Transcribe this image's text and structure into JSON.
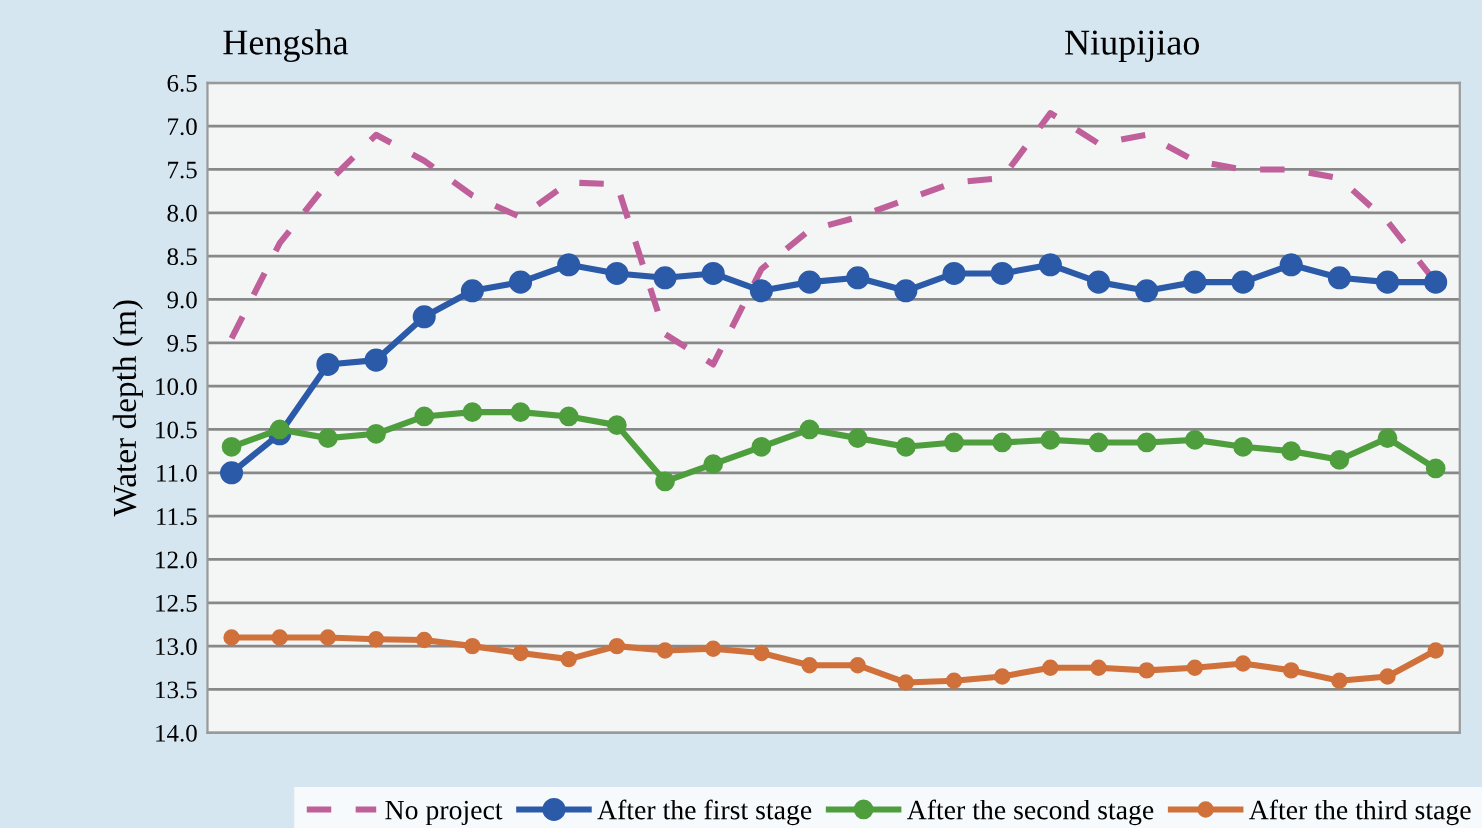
{
  "chart_data": {
    "type": "line",
    "ylabel": "Water depth (m)",
    "annotations": [
      "Hengsha",
      "Niupijiao"
    ],
    "categories": [
      null,
      null,
      null,
      null,
      null,
      null,
      null,
      null,
      null,
      null,
      null,
      null,
      null,
      null,
      null,
      null,
      null,
      null,
      null,
      null,
      null,
      null,
      null,
      null,
      null,
      null
    ],
    "ylim": [
      14.0,
      6.5
    ],
    "yticks": [
      6.5,
      {
        "value": 7,
        "label": "7.0"
      },
      7.5,
      {
        "value": 8,
        "label": "8.0"
      },
      8.5,
      {
        "value": 9,
        "label": "9.0"
      },
      9.5,
      {
        "value": 10,
        "label": "10.0"
      },
      10.5,
      {
        "value": 11,
        "label": "11.0"
      },
      11.5,
      {
        "value": 12,
        "label": "12.0"
      },
      12.5,
      {
        "value": 13,
        "label": "13.0"
      },
      13.5,
      {
        "value": 14,
        "label": "14.0"
      }
    ],
    "grid": "y",
    "legend": "bottom",
    "series": [
      {
        "name": "No project",
        "color": "#c0609a",
        "line_style": "dashed",
        "marker": "none",
        "values": [
          9.45,
          8.35,
          7.65,
          7.1,
          7.4,
          7.8,
          8.05,
          7.65,
          7.67,
          9.4,
          9.75,
          8.65,
          8.2,
          8.05,
          7.85,
          7.65,
          7.6,
          6.85,
          7.2,
          7.1,
          7.4,
          7.5,
          7.5,
          7.6,
          8.1,
          8.8
        ]
      },
      {
        "name": "After the first stage",
        "color": "#2a5aa8",
        "marker": "circle",
        "values": [
          11.0,
          10.55,
          9.75,
          9.7,
          9.2,
          8.9,
          8.8,
          8.6,
          8.7,
          8.75,
          8.7,
          8.9,
          8.8,
          8.75,
          8.9,
          8.7,
          8.7,
          8.6,
          8.8,
          8.9,
          8.8,
          8.8,
          8.6,
          8.75,
          8.8,
          8.8
        ]
      },
      {
        "name": "After the second stage",
        "color": "#4f9e3e",
        "marker": "circle",
        "values": [
          10.7,
          10.5,
          10.6,
          10.55,
          10.35,
          10.3,
          10.3,
          10.35,
          10.45,
          11.1,
          10.9,
          10.7,
          10.5,
          10.6,
          10.7,
          10.65,
          10.65,
          10.62,
          10.65,
          10.65,
          10.62,
          10.7,
          10.75,
          10.85,
          10.6,
          10.95
        ]
      },
      {
        "name": "After the third stage",
        "color": "#d0703a",
        "marker": "circle",
        "values": [
          12.9,
          12.9,
          12.9,
          12.92,
          12.93,
          13.0,
          13.08,
          13.15,
          13.0,
          13.05,
          13.03,
          13.08,
          13.22,
          13.22,
          13.42,
          13.4,
          13.35,
          13.25,
          13.25,
          13.28,
          13.25,
          13.2,
          13.28,
          13.4,
          13.35,
          13.05
        ]
      }
    ]
  }
}
